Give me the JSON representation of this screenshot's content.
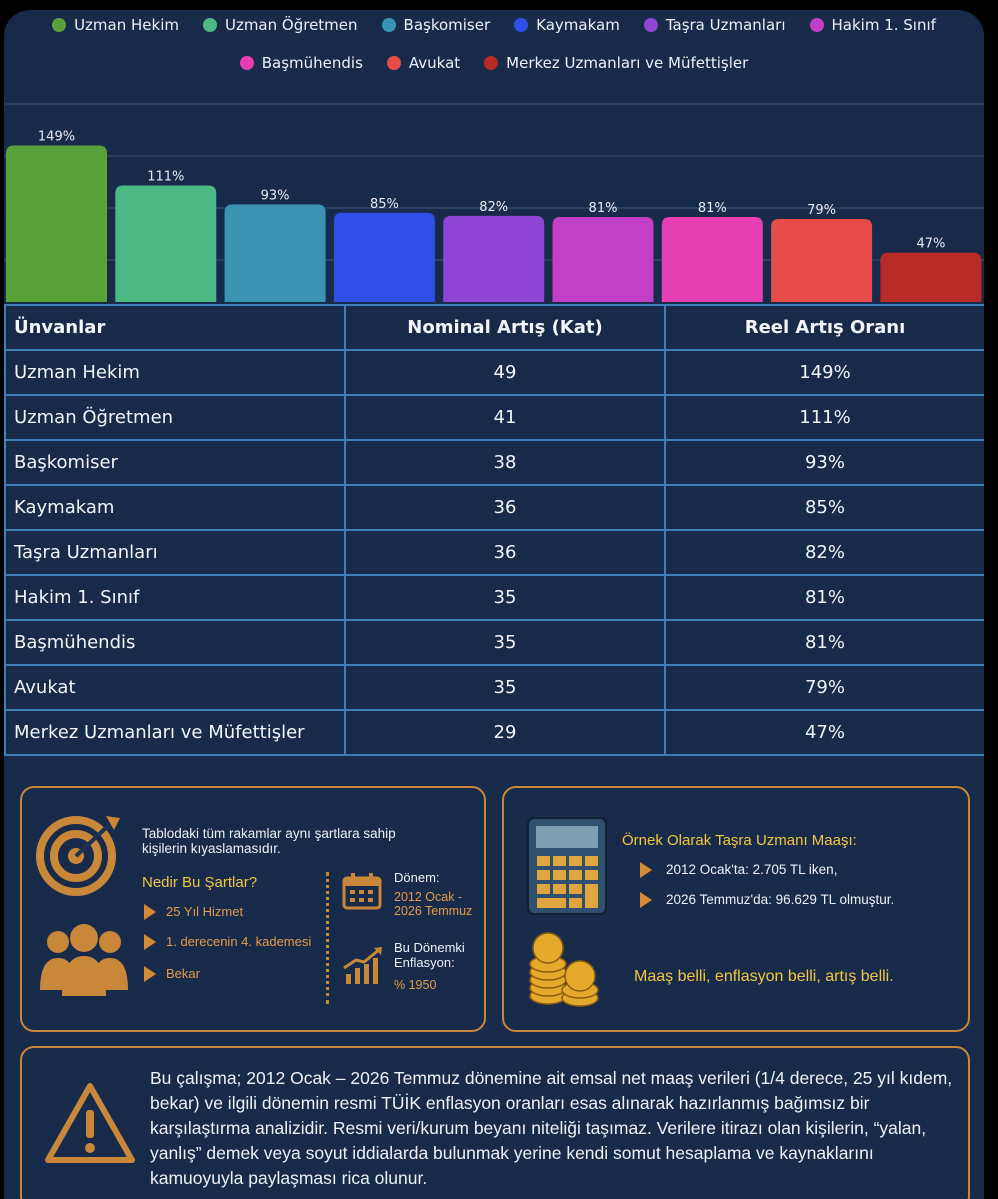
{
  "chart_data": {
    "type": "bar",
    "categories": [
      "Uzman Hekim",
      "Uzman Öğretmen",
      "Başkomiser",
      "Kaymakam",
      "Taşra Uzmanları",
      "Hakim 1. Sınıf",
      "Başmühendis",
      "Avukat",
      "Merkez Uzmanları ve Müfettişler"
    ],
    "values": [
      149,
      111,
      93,
      85,
      82,
      81,
      81,
      79,
      47
    ],
    "value_labels": [
      "149%",
      "111%",
      "93%",
      "85%",
      "82%",
      "81%",
      "81%",
      "79%",
      "47%"
    ],
    "colors": [
      "#5aa13a",
      "#4cb884",
      "#3b93b4",
      "#2f4fe6",
      "#8f45d3",
      "#c23fc7",
      "#e53fb2",
      "#e74c48",
      "#b72a25"
    ],
    "ylim": [
      0,
      160
    ],
    "legend_position": "top",
    "grid": true
  },
  "table": {
    "headers": [
      "Ünvanlar",
      "Nominal Artış (Kat)",
      "Reel Artış Oranı"
    ],
    "rows": [
      [
        "Uzman Hekim",
        "49",
        "149%"
      ],
      [
        "Uzman Öğretmen",
        "41",
        "111%"
      ],
      [
        "Başkomiser",
        "38",
        "93%"
      ],
      [
        "Kaymakam",
        "36",
        "85%"
      ],
      [
        "Taşra Uzmanları",
        "36",
        "82%"
      ],
      [
        "Hakim 1. Sınıf",
        "35",
        "81%"
      ],
      [
        "Başmühendis",
        "35",
        "81%"
      ],
      [
        "Avukat",
        "35",
        "79%"
      ],
      [
        "Merkez Uzmanları ve Müfettişler",
        "29",
        "47%"
      ]
    ]
  },
  "info_left": {
    "intro": "Tablodaki tüm rakamlar aynı şartlara sahip kişilerin kıyaslamasıdır.",
    "conditions_title": "Nedir Bu Şartlar?",
    "conditions": [
      "25 Yıl Hizmet",
      "1. derecenin 4. kademesi",
      "Bekar"
    ],
    "period_label": "Dönem:",
    "period_value": "2012 Ocak - 2026 Temmuz",
    "inflation_label": "Bu Dönemki Enflasyon:",
    "inflation_value": "% 1950",
    "icons": [
      "target-icon",
      "people-icon",
      "calendar-icon",
      "growth-chart-icon"
    ]
  },
  "info_right": {
    "title": "Örnek Olarak Taşra Uzmanı Maaşı:",
    "items": [
      "2012 Ocak'ta: 2.705 TL iken,",
      "2026 Temmuz'da: 96.629 TL olmuştur."
    ],
    "slogan": "Maaş belli, enflasyon belli, artış belli.",
    "icons": [
      "calculator-icon",
      "coins-icon"
    ]
  },
  "disclaimer": {
    "text": "Bu çalışma; 2012 Ocak – 2026 Temmuz dönemine ait emsal net maaş verileri (1/4 derece, 25 yıl kıdem, bekar) ve ilgili dönemin resmi TÜİK enflasyon oranları esas alınarak hazırlanmış bağımsız bir karşılaştırma analizidir. Resmi veri/kurum beyanı niteliği taşımaz. Verilere itirazı olan kişilerin, “yalan, yanlış” demek veya soyut iddialarda bulunmak yerine kendi somut hesaplama ve kaynaklarını kamuoyuyla paylaşması rica olunur.",
    "icon": "warning-icon"
  }
}
